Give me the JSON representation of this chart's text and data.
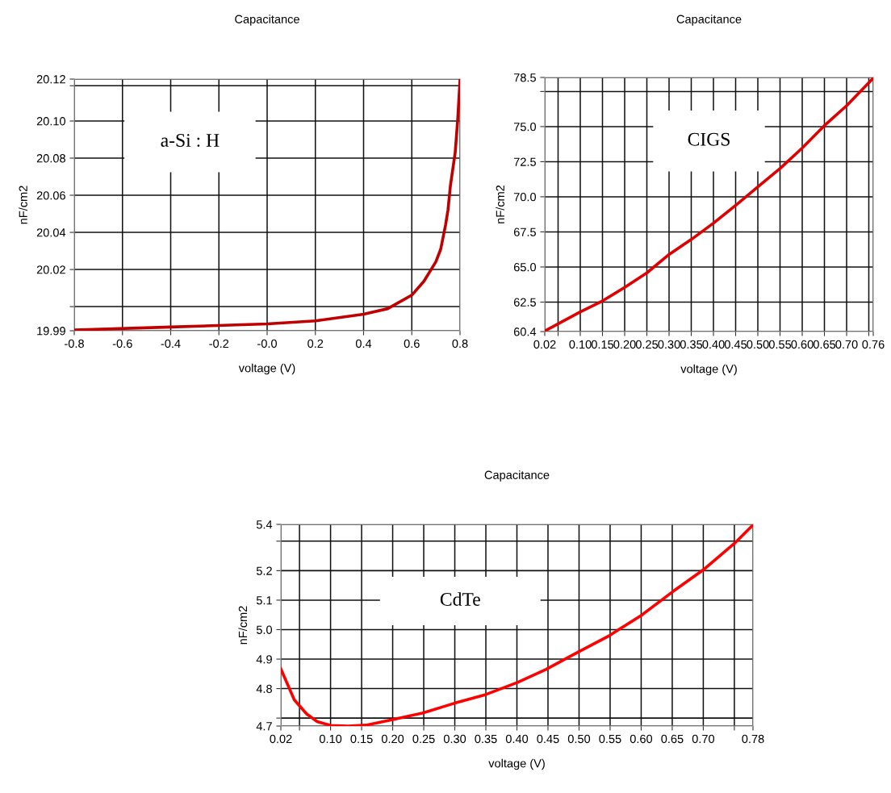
{
  "chart_data": [
    {
      "type": "line",
      "title": "Capacitance",
      "xlabel": "voltage (V)",
      "ylabel": "nF/cm2",
      "annotations": [
        "a-Si : H"
      ],
      "grid": true,
      "xlim": [
        -0.8,
        0.8
      ],
      "xticks": [
        -0.8,
        -0.6,
        -0.4,
        -0.2,
        {
          "value": 0,
          "label": "-0.0"
        },
        0.2,
        0.4,
        0.6,
        0.8
      ],
      "ylim": [
        19.987,
        20.1226
      ],
      "yticks": [
        {
          "value": 19.987,
          "label": "19.99"
        },
        {
          "value": 20.0,
          "label": null
        },
        20.02,
        20.04,
        20.06,
        20.08,
        {
          "value": 20.1,
          "label": "20.10"
        },
        {
          "value": 20.119,
          "label": null
        },
        {
          "value": 20.1226,
          "label": "20.12"
        }
      ],
      "series": [
        {
          "color": "#c00000",
          "x": [
            -0.8,
            -0.4,
            0.0,
            0.2,
            0.4,
            0.5,
            0.6,
            0.65,
            0.7,
            0.72,
            0.74,
            0.75,
            0.76,
            0.78,
            0.79,
            0.8
          ],
          "values": [
            19.9874,
            19.989,
            19.9907,
            19.9923,
            19.9959,
            19.9989,
            20.0062,
            20.0136,
            20.0242,
            20.031,
            20.044,
            20.052,
            20.065,
            20.083,
            20.1,
            20.1222
          ]
        }
      ]
    },
    {
      "type": "line",
      "title": "Capacitance",
      "xlabel": "voltage (V)",
      "ylabel": "nF/cm2",
      "annotations": [
        "CIGS"
      ],
      "grid": true,
      "xlim": [
        0.02,
        0.76
      ],
      "xticks": [
        0.02,
        {
          "value": 0.05,
          "label": null
        },
        {
          "value": 0.1,
          "label": "0.10"
        },
        0.15,
        {
          "value": 0.2,
          "label": "0.20"
        },
        0.25,
        {
          "value": 0.3,
          "label": "0.30"
        },
        0.35,
        {
          "value": 0.4,
          "label": "0.40"
        },
        0.45,
        {
          "value": 0.5,
          "label": "0.50"
        },
        0.55,
        {
          "value": 0.6,
          "label": "0.60"
        },
        0.65,
        {
          "value": 0.7,
          "label": "0.70"
        },
        {
          "value": 0.75,
          "label": null
        },
        0.76
      ],
      "ylim": [
        60.4,
        78.5
      ],
      "yticks": [
        60.4,
        62.5,
        {
          "value": 65,
          "label": "65.0"
        },
        67.5,
        {
          "value": 70,
          "label": "70.0"
        },
        72.5,
        {
          "value": 75,
          "label": "75.0"
        },
        {
          "value": 77.5,
          "label": null
        },
        78.5
      ],
      "series": [
        {
          "color": "#e00000",
          "x": [
            0.02,
            0.1,
            0.15,
            0.2,
            0.25,
            0.3,
            0.35,
            0.4,
            0.45,
            0.5,
            0.55,
            0.6,
            0.65,
            0.7,
            0.76
          ],
          "values": [
            60.44,
            61.8,
            62.58,
            63.55,
            64.58,
            65.89,
            66.96,
            68.12,
            69.39,
            70.71,
            72.01,
            73.47,
            75.07,
            76.49,
            78.45
          ]
        }
      ]
    },
    {
      "type": "line",
      "title": "Capacitance",
      "xlabel": "voltage (V)",
      "ylabel": "nF/cm2",
      "annotations": [
        "CdTe"
      ],
      "grid": true,
      "xlim": [
        0.02,
        0.78
      ],
      "xticks": [
        0.02,
        {
          "value": 0.05,
          "label": null
        },
        {
          "value": 0.1,
          "label": "0.10"
        },
        0.15,
        {
          "value": 0.2,
          "label": "0.20"
        },
        0.25,
        {
          "value": 0.3,
          "label": "0.30"
        },
        0.35,
        {
          "value": 0.4,
          "label": "0.40"
        },
        0.45,
        {
          "value": 0.5,
          "label": "0.50"
        },
        0.55,
        {
          "value": 0.6,
          "label": "0.60"
        },
        0.65,
        {
          "value": 0.7,
          "label": "0.70"
        },
        {
          "value": 0.75,
          "label": null
        },
        0.78
      ],
      "ylim": [
        4.673,
        5.357
      ],
      "yticks": [
        {
          "value": 4.673,
          "label": "4.7"
        },
        {
          "value": 4.7,
          "label": null
        },
        4.8,
        4.9,
        {
          "value": 5.0,
          "label": "5.0"
        },
        5.1,
        5.2,
        {
          "value": 5.3,
          "label": null
        },
        {
          "value": 5.357,
          "label": "5.4"
        }
      ],
      "series": [
        {
          "color": "#ff0000",
          "x": [
            0.02,
            0.0416,
            0.0615,
            0.0785,
            0.1,
            0.1284,
            0.157,
            0.2,
            0.2477,
            0.2989,
            0.35,
            0.4011,
            0.4466,
            0.4977,
            0.549,
            0.6,
            0.651,
            0.702,
            0.753,
            0.78
          ],
          "values": [
            4.867,
            4.762,
            4.714,
            4.688,
            4.675,
            4.673,
            4.676,
            4.695,
            4.717,
            4.75,
            4.78,
            4.821,
            4.865,
            4.923,
            4.98,
            5.048,
            5.129,
            5.206,
            5.298,
            5.355
          ]
        }
      ]
    }
  ]
}
